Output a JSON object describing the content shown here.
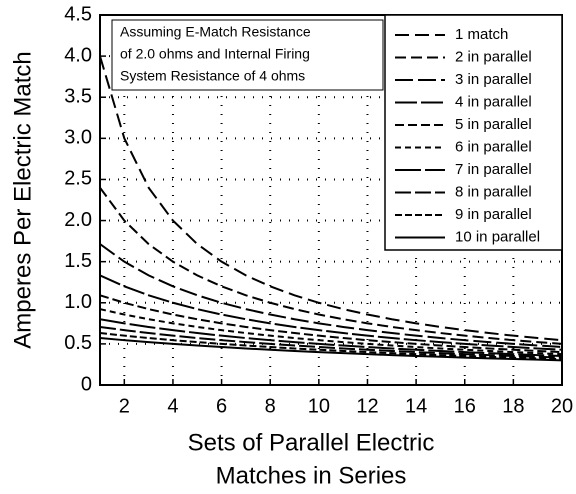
{
  "chart_data": {
    "type": "line",
    "ylabel": "Amperes Per Electric Match",
    "xlabel": [
      "Sets of Parallel Electric",
      "Matches in Series"
    ],
    "annotation": [
      "Assuming E-Match Resistance",
      "of 2.0 ohms and Internal Firing",
      "System Resistance of 4 ohms"
    ],
    "x": [
      1,
      2,
      3,
      4,
      5,
      6,
      7,
      8,
      9,
      10,
      11,
      12,
      13,
      14,
      15,
      16,
      17,
      18,
      19,
      20
    ],
    "xlim": [
      1,
      20
    ],
    "xticks": [
      2,
      4,
      6,
      8,
      10,
      12,
      14,
      16,
      18,
      20
    ],
    "ylim": [
      0,
      4.5
    ],
    "yticks": [
      0,
      0.5,
      {
        "value": 1,
        "label": "1.0"
      },
      1.5,
      {
        "value": 2,
        "label": "2.0"
      },
      2.5,
      {
        "value": 3,
        "label": "3.0"
      },
      3.5,
      {
        "value": 4,
        "label": "4.0"
      },
      4.5
    ],
    "grid": true,
    "legend": "upper right",
    "series": [
      {
        "name": "1 match",
        "color": "#000000",
        "dash": "14,6",
        "values": [
          4,
          3,
          2.4,
          2,
          1.714,
          1.5,
          1.333,
          1.2,
          1.091,
          1,
          0.923,
          0.857,
          0.8,
          0.75,
          0.706,
          0.667,
          0.632,
          0.6,
          0.571,
          0.545
        ]
      },
      {
        "name": "2 in parallel",
        "color": "#000000",
        "dash": "11,5",
        "values": [
          2.4,
          2,
          1.714,
          1.5,
          1.333,
          1.2,
          1.091,
          1,
          0.923,
          0.857,
          0.8,
          0.75,
          0.706,
          0.667,
          0.632,
          0.6,
          0.571,
          0.545,
          0.522,
          0.5
        ]
      },
      {
        "name": "3 in parallel",
        "color": "#000000",
        "dash": "18,5",
        "values": [
          1.714,
          1.5,
          1.333,
          1.2,
          1.091,
          1,
          0.923,
          0.857,
          0.8,
          0.75,
          0.706,
          0.667,
          0.632,
          0.6,
          0.571,
          0.545,
          0.522,
          0.5,
          0.48,
          0.462
        ]
      },
      {
        "name": "4 in parallel",
        "color": "#000000",
        "dash": "22,4",
        "values": [
          1.333,
          1.2,
          1.091,
          1,
          0.923,
          0.857,
          0.8,
          0.75,
          0.706,
          0.667,
          0.632,
          0.6,
          0.571,
          0.545,
          0.522,
          0.5,
          0.48,
          0.462,
          0.444,
          0.429
        ]
      },
      {
        "name": "5 in parallel",
        "color": "#000000",
        "dash": "9,4",
        "values": [
          1.091,
          1,
          0.923,
          0.857,
          0.8,
          0.75,
          0.706,
          0.667,
          0.632,
          0.6,
          0.571,
          0.545,
          0.522,
          0.5,
          0.48,
          0.462,
          0.444,
          0.429,
          0.414,
          0.4
        ]
      },
      {
        "name": "6 in parallel",
        "color": "#000000",
        "dash": "6,4",
        "values": [
          0.923,
          0.857,
          0.8,
          0.75,
          0.706,
          0.667,
          0.632,
          0.6,
          0.571,
          0.545,
          0.522,
          0.5,
          0.48,
          0.462,
          0.444,
          0.429,
          0.414,
          0.4,
          0.387,
          0.375
        ]
      },
      {
        "name": "7 in parallel",
        "color": "#000000",
        "dash": "26,4",
        "values": [
          0.8,
          0.75,
          0.706,
          0.667,
          0.632,
          0.6,
          0.571,
          0.545,
          0.522,
          0.5,
          0.48,
          0.462,
          0.444,
          0.429,
          0.414,
          0.4,
          0.387,
          0.375,
          0.364,
          0.353
        ]
      },
      {
        "name": "8 in parallel",
        "color": "#000000",
        "dash": "16,4",
        "values": [
          0.706,
          0.667,
          0.632,
          0.6,
          0.571,
          0.545,
          0.522,
          0.5,
          0.48,
          0.462,
          0.444,
          0.429,
          0.414,
          0.4,
          0.387,
          0.375,
          0.364,
          0.353,
          0.343,
          0.333
        ]
      },
      {
        "name": "9 in parallel",
        "color": "#000000",
        "dash": "7,3",
        "values": [
          0.632,
          0.6,
          0.571,
          0.545,
          0.522,
          0.5,
          0.48,
          0.462,
          0.444,
          0.429,
          0.414,
          0.4,
          0.387,
          0.375,
          0.364,
          0.353,
          0.343,
          0.333,
          0.324,
          0.316
        ]
      },
      {
        "name": "10 in parallel",
        "color": "#000000",
        "dash": "none",
        "values": [
          0.571,
          0.545,
          0.522,
          0.5,
          0.48,
          0.462,
          0.444,
          0.429,
          0.414,
          0.4,
          0.387,
          0.375,
          0.364,
          0.353,
          0.343,
          0.333,
          0.324,
          0.316,
          0.308,
          0.3
        ]
      }
    ]
  }
}
